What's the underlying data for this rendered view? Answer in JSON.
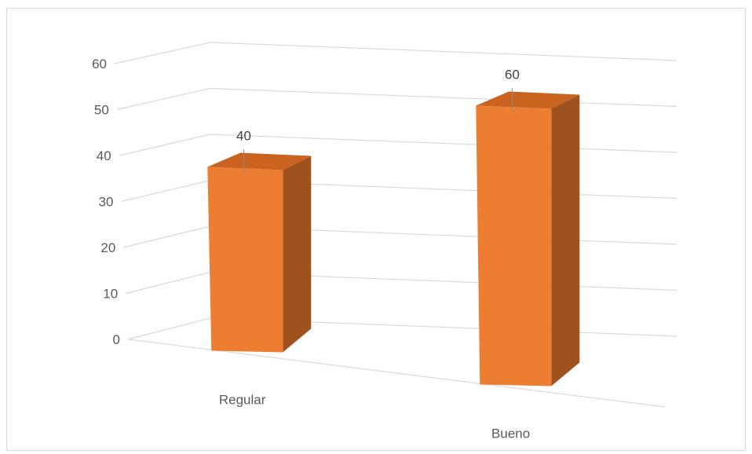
{
  "chart_data": {
    "type": "bar",
    "style": "3d-column",
    "categories": [
      "Regular",
      "Bueno"
    ],
    "values": [
      40,
      60
    ],
    "ylim": [
      0,
      60
    ],
    "yticks": [
      0,
      10,
      20,
      30,
      40,
      50,
      60
    ],
    "data_labels": [
      "40",
      "60"
    ],
    "grid": true,
    "legend": "none",
    "colors": {
      "bar_front": "#ED7D31",
      "bar_side": "#A0521E",
      "bar_top": "#C9631F",
      "grid": "#d9d9d9",
      "label": "#595959"
    }
  }
}
